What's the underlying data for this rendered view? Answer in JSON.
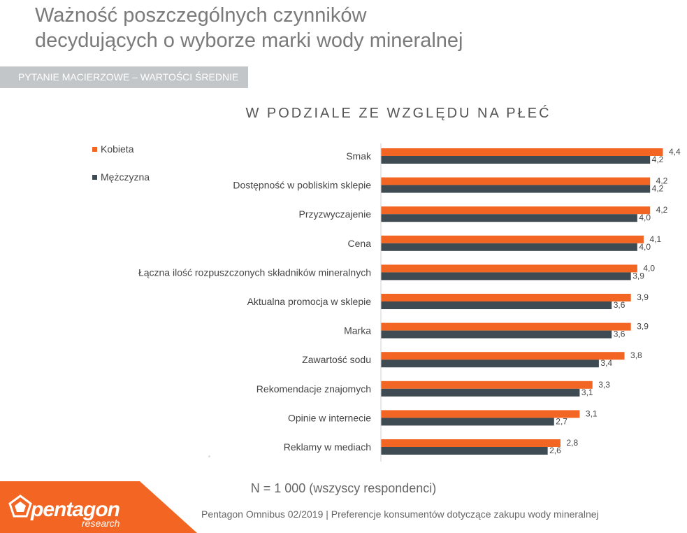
{
  "header": {
    "title_line1": "Ważność poszczególnych czynników",
    "title_line2": "decydujących o wyborze marki wody mineralnej",
    "subtitle": "PYTANIE MACIERZOWE – WARTOŚCI ŚREDNIE"
  },
  "colors": {
    "orange": "#f26522",
    "dark": "#3f4b53",
    "grey": "#c3c6c8"
  },
  "chart_data": {
    "type": "bar",
    "orientation": "horizontal",
    "title": "W PODZIALE ZE WZGLĘDU NA PŁEĆ",
    "categories": [
      "Smak",
      "Dostępność w pobliskim sklepie",
      "Przyzwyczajenie",
      "Cena",
      "Łączna ilość rozpuszczonych składników mineralnych",
      "Aktualna promocja w sklepie",
      "Marka",
      "Zawartość sodu",
      "Rekomendacje znajomych",
      "Opinie w internecie",
      "Reklamy w mediach"
    ],
    "series": [
      {
        "name": "Kobieta",
        "values": [
          4.4,
          4.2,
          4.2,
          4.1,
          4.0,
          3.9,
          3.9,
          3.8,
          3.3,
          3.1,
          2.8
        ]
      },
      {
        "name": "Mężczyzna",
        "values": [
          4.2,
          4.2,
          4.0,
          4.0,
          3.9,
          3.6,
          3.6,
          3.4,
          3.1,
          2.7,
          2.6
        ]
      }
    ],
    "value_labels": [
      [
        "4,4",
        "4,2",
        "4,2",
        "4,1",
        "4,0",
        "3,9",
        "3,9",
        "3,8",
        "3,3",
        "3,1",
        "2,8"
      ],
      [
        "4,2",
        "4,2",
        "4,0",
        "4,0",
        "3,9",
        "3,6",
        "3,6",
        "3,4",
        "3,1",
        "2,7",
        "2,6"
      ]
    ],
    "xlim": [
      0,
      4.4
    ],
    "legend": "top-left"
  },
  "note": "N = 1 000 (wszyscy respondenci)",
  "footer": {
    "logo": "pentagon",
    "logo_sub": "research",
    "source": "Pentagon Omnibus 02/2019 | Preferencje konsumentów dotyczące zakupu wody mineralnej"
  }
}
